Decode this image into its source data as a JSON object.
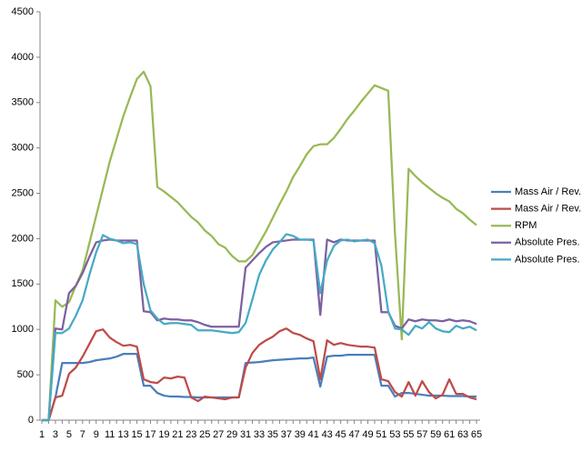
{
  "chart_data": {
    "type": "line",
    "categories": [
      1,
      null,
      3,
      null,
      5,
      null,
      7,
      null,
      9,
      null,
      11,
      null,
      13,
      null,
      15,
      null,
      17,
      null,
      19,
      null,
      21,
      null,
      23,
      null,
      25,
      null,
      27,
      null,
      29,
      null,
      31,
      null,
      33,
      null,
      35,
      null,
      37,
      null,
      39,
      null,
      41,
      null,
      43,
      null,
      45,
      null,
      47,
      null,
      49,
      null,
      51,
      null,
      53,
      null,
      55,
      null,
      57,
      null,
      59,
      null,
      61,
      null,
      63,
      null,
      65
    ],
    "ylim": [
      0,
      4500
    ],
    "yticks": [
      0,
      500,
      1000,
      1500,
      2000,
      2500,
      3000,
      3500,
      4000,
      4500
    ],
    "grid": false,
    "legend": "right",
    "series": [
      {
        "name": "Mass Air / Rev.",
        "color": "#4a7ebb",
        "values": [
          0,
          0,
          250,
          630,
          630,
          630,
          630,
          640,
          660,
          670,
          680,
          700,
          730,
          730,
          730,
          380,
          380,
          300,
          270,
          260,
          260,
          255,
          255,
          250,
          250,
          250,
          250,
          250,
          250,
          250,
          630,
          635,
          640,
          650,
          660,
          665,
          670,
          675,
          680,
          680,
          690,
          370,
          700,
          710,
          710,
          720,
          720,
          720,
          720,
          720,
          380,
          380,
          260,
          300,
          300,
          290,
          280,
          270,
          270,
          270,
          265,
          265,
          265,
          260,
          260
        ]
      },
      {
        "name": "Mass Air / Rev.",
        "color": "#be4b48",
        "values": [
          0,
          0,
          250,
          270,
          510,
          580,
          700,
          840,
          980,
          1000,
          910,
          860,
          820,
          830,
          810,
          450,
          420,
          410,
          470,
          460,
          480,
          470,
          250,
          210,
          260,
          250,
          240,
          230,
          250,
          250,
          580,
          740,
          830,
          880,
          920,
          980,
          1010,
          960,
          940,
          900,
          870,
          450,
          880,
          830,
          850,
          830,
          820,
          810,
          810,
          800,
          450,
          430,
          310,
          260,
          420,
          270,
          430,
          310,
          240,
          280,
          450,
          290,
          290,
          250,
          230
        ]
      },
      {
        "name": "RPM",
        "color": "#98b954",
        "values": [
          0,
          0,
          1320,
          1250,
          1300,
          1480,
          1650,
          1950,
          2250,
          2550,
          2850,
          3100,
          3350,
          3560,
          3760,
          3840,
          3680,
          2570,
          2520,
          2460,
          2400,
          2320,
          2240,
          2180,
          2090,
          2030,
          1940,
          1900,
          1810,
          1750,
          1750,
          1820,
          1950,
          2080,
          2230,
          2380,
          2520,
          2680,
          2800,
          2930,
          3020,
          3040,
          3040,
          3110,
          3210,
          3320,
          3410,
          3510,
          3600,
          3690,
          3660,
          3630,
          2050,
          890,
          2770,
          2690,
          2620,
          2560,
          2500,
          2450,
          2410,
          2330,
          2280,
          2210,
          2150
        ]
      },
      {
        "name": "Absolute Pres.",
        "color": "#7d60a0",
        "values": [
          0,
          0,
          1010,
          1000,
          1400,
          1480,
          1620,
          1800,
          1960,
          1980,
          1990,
          1980,
          1980,
          1980,
          1980,
          1200,
          1190,
          1100,
          1120,
          1110,
          1110,
          1100,
          1100,
          1080,
          1050,
          1030,
          1030,
          1030,
          1030,
          1030,
          1680,
          1760,
          1840,
          1910,
          1960,
          1970,
          1980,
          1990,
          1990,
          1990,
          1990,
          1160,
          1990,
          1960,
          1990,
          1980,
          1980,
          1980,
          1980,
          1980,
          1190,
          1190,
          1040,
          1010,
          1110,
          1090,
          1110,
          1100,
          1100,
          1090,
          1110,
          1090,
          1100,
          1090,
          1060
        ]
      },
      {
        "name": "Absolute Pres.",
        "color": "#46aac5",
        "values": [
          0,
          0,
          960,
          960,
          1010,
          1150,
          1320,
          1600,
          1850,
          2040,
          2000,
          1980,
          1950,
          1960,
          1940,
          1500,
          1210,
          1120,
          1060,
          1070,
          1070,
          1060,
          1050,
          990,
          990,
          990,
          980,
          970,
          960,
          970,
          1070,
          1330,
          1600,
          1760,
          1880,
          1960,
          2050,
          2030,
          1990,
          1990,
          1980,
          1400,
          1760,
          1920,
          1980,
          1990,
          1970,
          1980,
          1990,
          1950,
          1700,
          1200,
          1010,
          1000,
          940,
          1040,
          1010,
          1080,
          1010,
          980,
          970,
          1040,
          1010,
          1030,
          990
        ]
      }
    ]
  }
}
